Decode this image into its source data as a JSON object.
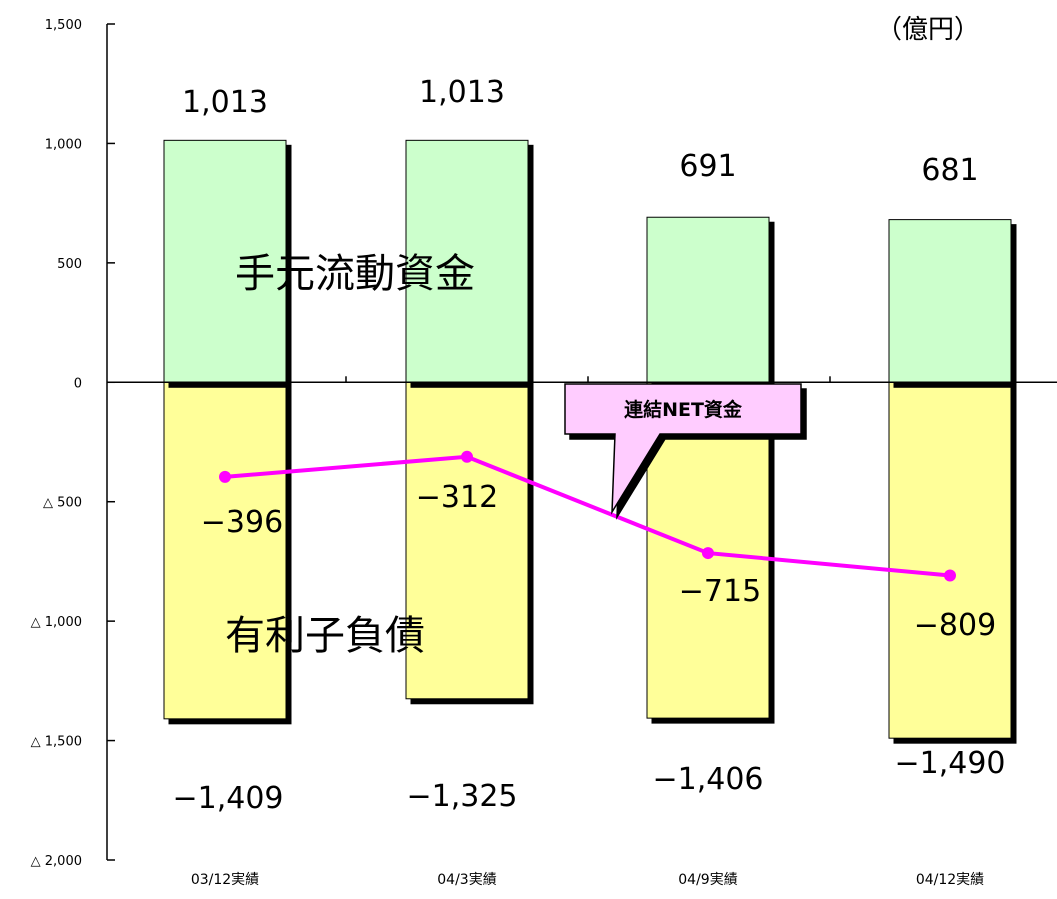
{
  "chart_data": {
    "type": "bar",
    "unit_label": "（億円）",
    "categories": [
      "03/12実績",
      "04/3実績",
      "04/9実績",
      "04/12実績"
    ],
    "series": [
      {
        "name": "手元流動資金",
        "values": [
          1013,
          1013,
          691,
          681
        ],
        "labels": [
          "1,013",
          "1,013",
          "691",
          "681"
        ],
        "color": "#ccffcc"
      },
      {
        "name": "有利子負債",
        "values": [
          -1409,
          -1325,
          -1406,
          -1490
        ],
        "labels": [
          "−1,409",
          "−1,325",
          "−1,406",
          "−1,490"
        ],
        "color": "#ffff99"
      },
      {
        "name": "連結NET資金",
        "type": "line",
        "values": [
          -396,
          -312,
          -715,
          -809
        ],
        "labels": [
          "−396",
          "−312",
          "−715",
          "−809"
        ],
        "color": "#ff00ff"
      }
    ],
    "ylim": [
      -2000,
      1500
    ],
    "yticks": [
      1500,
      1000,
      500,
      0,
      -500,
      -1000,
      -1500,
      -2000
    ],
    "ytick_labels": [
      "1,500",
      "1,000",
      "500",
      "0",
      "△ 500",
      "△ 1,000",
      "△ 1,500",
      "△ 2,000"
    ],
    "legend": "none"
  }
}
